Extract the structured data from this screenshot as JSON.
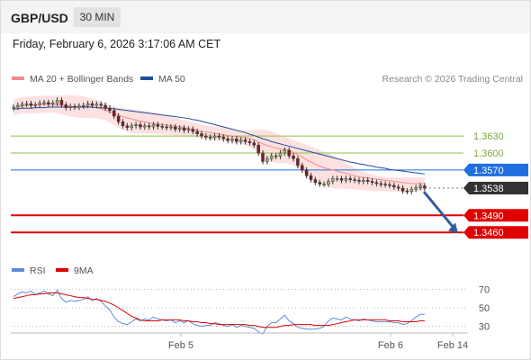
{
  "header": {
    "symbol": "GBP/USD",
    "interval": "30 MIN"
  },
  "datetime": "Friday, February 6, 2026 3:17:06 AM CET",
  "legend": {
    "bollinger": "MA 20 + Bollinger Bands",
    "ma50": "MA 50",
    "credit": "Research © 2026 Trading Central"
  },
  "rsi_legend": {
    "rsi": "RSI",
    "ma9": "9MA"
  },
  "colors": {
    "bollinger": "#f28b8b",
    "ma50": "#1f4e9c",
    "band_fill": "#fddcdc",
    "up": "#9ac36d",
    "down": "#c0392b",
    "candle": "#7f1e1e",
    "resistance": "#8bc34a",
    "pivot": "#1f6fe0",
    "support": "#e00000",
    "last": "#333333",
    "rsi": "#5b8bd9",
    "rsi_ma": "#e00000",
    "arrow": "#2f5d9e"
  },
  "chart_data": {
    "type": "candlestick",
    "symbol": "GBP/USD",
    "timeframe": "30 MIN",
    "ylim": [
      1.34,
      1.37
    ],
    "x_labels": [
      "Feb 5",
      "Feb 6",
      "Feb 14"
    ],
    "levels": [
      {
        "label": "1.3630",
        "value": 1.363,
        "kind": "resistance"
      },
      {
        "label": "1.3600",
        "value": 1.36,
        "kind": "resistance"
      },
      {
        "label": "1.3570",
        "value": 1.357,
        "kind": "pivot"
      },
      {
        "label": "1.3538",
        "value": 1.3538,
        "kind": "last"
      },
      {
        "label": "1.3490",
        "value": 1.349,
        "kind": "support"
      },
      {
        "label": "1.3460",
        "value": 1.346,
        "kind": "support"
      }
    ],
    "close": [
      1.3681,
      1.3684,
      1.3686,
      1.3687,
      1.3684,
      1.3685,
      1.3688,
      1.3689,
      1.3686,
      1.3688,
      1.3693,
      1.3685,
      1.368,
      1.3682,
      1.3681,
      1.3683,
      1.3684,
      1.3687,
      1.3684,
      1.3686,
      1.3684,
      1.3679,
      1.3675,
      1.3665,
      1.3655,
      1.3648,
      1.3645,
      1.3648,
      1.365,
      1.3646,
      1.3648,
      1.3646,
      1.365,
      1.3647,
      1.3646,
      1.3645,
      1.3646,
      1.3642,
      1.3644,
      1.364,
      1.3642,
      1.3638,
      1.3634,
      1.363,
      1.3628,
      1.3627,
      1.363,
      1.3628,
      1.3625,
      1.3622,
      1.3625,
      1.362,
      1.3623,
      1.362,
      1.3618,
      1.3614,
      1.36,
      1.3585,
      1.359,
      1.3595,
      1.3594,
      1.36,
      1.3605,
      1.3595,
      1.359,
      1.3578,
      1.357,
      1.356,
      1.3553,
      1.3548,
      1.3545,
      1.3545,
      1.355,
      1.3555,
      1.3555,
      1.3552,
      1.3555,
      1.3553,
      1.3552,
      1.355,
      1.3552,
      1.355,
      1.3548,
      1.3546,
      1.3545,
      1.3544,
      1.3543,
      1.354,
      1.3538,
      1.3533,
      1.3532,
      1.3536,
      1.3539,
      1.3542,
      1.3538
    ],
    "ma20": [
      1.368,
      1.3682,
      1.3683,
      1.3684,
      1.3685,
      1.3685,
      1.3686,
      1.3686,
      1.3686,
      1.3686,
      1.3685,
      1.3684,
      1.3683,
      1.3682,
      1.3682,
      1.3682,
      1.3682,
      1.3682,
      1.3681,
      1.368,
      1.3678,
      1.3676,
      1.3673,
      1.367,
      1.3667,
      1.3664,
      1.3662,
      1.366,
      1.3658,
      1.3656,
      1.3655,
      1.3653,
      1.3652,
      1.3651,
      1.365,
      1.3649,
      1.3648,
      1.3647,
      1.3646,
      1.3645,
      1.3643,
      1.3642,
      1.364,
      1.3638,
      1.3637,
      1.3636,
      1.3635,
      1.3634,
      1.3632,
      1.3631,
      1.363,
      1.3629,
      1.3628,
      1.3627,
      1.3625,
      1.3623,
      1.362,
      1.3616,
      1.3613,
      1.3611,
      1.3609,
      1.3607,
      1.3606,
      1.3604,
      1.3601,
      1.3597,
      1.3593,
      1.3588,
      1.3584,
      1.358,
      1.3577,
      1.3574,
      1.3572,
      1.357,
      1.3568,
      1.3566,
      1.3564,
      1.3562,
      1.356,
      1.3558,
      1.3557,
      1.3556,
      1.3555,
      1.3554,
      1.3553,
      1.3552,
      1.3551,
      1.355,
      1.3549,
      1.3548,
      1.3547,
      1.3546,
      1.3546,
      1.3546,
      1.3546
    ],
    "bb_upper": [
      1.3694,
      1.3697,
      1.3698,
      1.3699,
      1.37,
      1.37,
      1.3701,
      1.3701,
      1.3701,
      1.3701,
      1.3701,
      1.3702,
      1.3702,
      1.3702,
      1.3702,
      1.3701,
      1.37,
      1.3698,
      1.3696,
      1.3694,
      1.3691,
      1.3688,
      1.3685,
      1.3682,
      1.368,
      1.3679,
      1.3678,
      1.3677,
      1.3676,
      1.3675,
      1.3674,
      1.3673,
      1.3672,
      1.367,
      1.3668,
      1.3666,
      1.3664,
      1.3662,
      1.366,
      1.3658,
      1.3656,
      1.3654,
      1.3652,
      1.365,
      1.3649,
      1.3648,
      1.3647,
      1.3646,
      1.3645,
      1.3643,
      1.3642,
      1.3641,
      1.364,
      1.364,
      1.364,
      1.364,
      1.3641,
      1.3641,
      1.364,
      1.3638,
      1.3635,
      1.3632,
      1.3629,
      1.3626,
      1.3623,
      1.362,
      1.3617,
      1.3614,
      1.3611,
      1.3608,
      1.3605,
      1.3602,
      1.3599,
      1.3596,
      1.3592,
      1.3588,
      1.3583,
      1.3578,
      1.3574,
      1.357,
      1.3567,
      1.3564,
      1.3562,
      1.356,
      1.3559,
      1.3558,
      1.3557,
      1.3557,
      1.3557,
      1.3557,
      1.3557,
      1.3557,
      1.3557,
      1.3557,
      1.3557
    ],
    "bb_lower": [
      1.3666,
      1.3668,
      1.3669,
      1.367,
      1.367,
      1.367,
      1.3671,
      1.3671,
      1.3671,
      1.3671,
      1.367,
      1.3668,
      1.3666,
      1.3664,
      1.3663,
      1.3662,
      1.3662,
      1.3662,
      1.3662,
      1.3661,
      1.366,
      1.3658,
      1.3654,
      1.3649,
      1.3644,
      1.364,
      1.3637,
      1.3635,
      1.3634,
      1.3634,
      1.3634,
      1.3634,
      1.3634,
      1.3633,
      1.3633,
      1.3632,
      1.3632,
      1.3631,
      1.3631,
      1.363,
      1.3629,
      1.3628,
      1.3627,
      1.3626,
      1.3625,
      1.3624,
      1.3623,
      1.3622,
      1.3621,
      1.362,
      1.3619,
      1.3618,
      1.3617,
      1.3614,
      1.361,
      1.3606,
      1.36,
      1.3592,
      1.3587,
      1.3585,
      1.3583,
      1.3582,
      1.3582,
      1.3581,
      1.3578,
      1.3573,
      1.3568,
      1.3561,
      1.3556,
      1.3551,
      1.3546,
      1.3542,
      1.354,
      1.3538,
      1.3537,
      1.3537,
      1.3537,
      1.3536,
      1.3536,
      1.3535,
      1.3534,
      1.3534,
      1.3534,
      1.3533,
      1.3533,
      1.3533,
      1.3532,
      1.3532,
      1.3531,
      1.3531,
      1.3531,
      1.3531,
      1.3532,
      1.3533,
      1.3534
    ],
    "ma50": [
      1.3678,
      1.3678,
      1.3679,
      1.3679,
      1.3679,
      1.368,
      1.368,
      1.368,
      1.3681,
      1.3681,
      1.3681,
      1.3681,
      1.3681,
      1.3681,
      1.3681,
      1.3681,
      1.3681,
      1.3681,
      1.3681,
      1.368,
      1.368,
      1.3679,
      1.3679,
      1.3678,
      1.3677,
      1.3676,
      1.3675,
      1.3674,
      1.3673,
      1.3672,
      1.3671,
      1.367,
      1.3669,
      1.3668,
      1.3667,
      1.3666,
      1.3665,
      1.3664,
      1.3663,
      1.3662,
      1.3661,
      1.3659,
      1.3658,
      1.3656,
      1.3654,
      1.3652,
      1.365,
      1.3648,
      1.3646,
      1.3644,
      1.3642,
      1.364,
      1.3638,
      1.3636,
      1.3633,
      1.3631,
      1.3628,
      1.3625,
      1.3623,
      1.362,
      1.3618,
      1.3616,
      1.3614,
      1.3612,
      1.361,
      1.3608,
      1.3606,
      1.3604,
      1.3602,
      1.36,
      1.3598,
      1.3596,
      1.3594,
      1.3592,
      1.359,
      1.3588,
      1.3586,
      1.3584,
      1.3583,
      1.3581,
      1.358,
      1.3578,
      1.3577,
      1.3575,
      1.3574,
      1.3573,
      1.3571,
      1.357,
      1.3569,
      1.3568,
      1.3567,
      1.3566,
      1.3565,
      1.3564,
      1.3563
    ],
    "projection": {
      "from": 1.3538,
      "to": 1.3455
    },
    "rsi": {
      "ticks": [
        70,
        50,
        30
      ],
      "ylim": [
        20,
        80
      ],
      "values": [
        62,
        65,
        67,
        66,
        68,
        64,
        66,
        68,
        65,
        63,
        69,
        60,
        56,
        58,
        57,
        58,
        59,
        62,
        58,
        60,
        57,
        52,
        48,
        40,
        35,
        33,
        32,
        35,
        38,
        36,
        38,
        37,
        40,
        38,
        37,
        36,
        37,
        34,
        36,
        34,
        36,
        33,
        31,
        30,
        31,
        31,
        34,
        33,
        31,
        30,
        32,
        29,
        31,
        30,
        29,
        28,
        24,
        22,
        30,
        34,
        34,
        38,
        42,
        36,
        33,
        29,
        28,
        27,
        27,
        27,
        28,
        30,
        36,
        39,
        38,
        37,
        40,
        38,
        37,
        36,
        38,
        37,
        36,
        35,
        35,
        35,
        35,
        34,
        34,
        32,
        33,
        36,
        40,
        43,
        43
      ],
      "ma9": [
        60,
        61,
        62,
        63,
        64,
        64,
        65,
        65,
        66,
        66,
        66,
        65,
        64,
        63,
        62,
        61,
        61,
        60,
        59,
        59,
        58,
        57,
        55,
        53,
        50,
        47,
        44,
        41,
        39,
        37,
        36,
        36,
        36,
        36,
        37,
        37,
        37,
        37,
        37,
        36,
        36,
        35,
        35,
        34,
        34,
        33,
        33,
        32,
        32,
        32,
        32,
        32,
        32,
        32,
        31,
        31,
        30,
        29,
        29,
        29,
        29,
        30,
        31,
        31,
        32,
        32,
        32,
        32,
        32,
        31,
        31,
        31,
        31,
        32,
        33,
        34,
        35,
        36,
        37,
        37,
        37,
        37,
        37,
        37,
        37,
        37,
        36,
        36,
        36,
        35,
        35,
        35,
        35,
        36,
        36
      ]
    }
  }
}
